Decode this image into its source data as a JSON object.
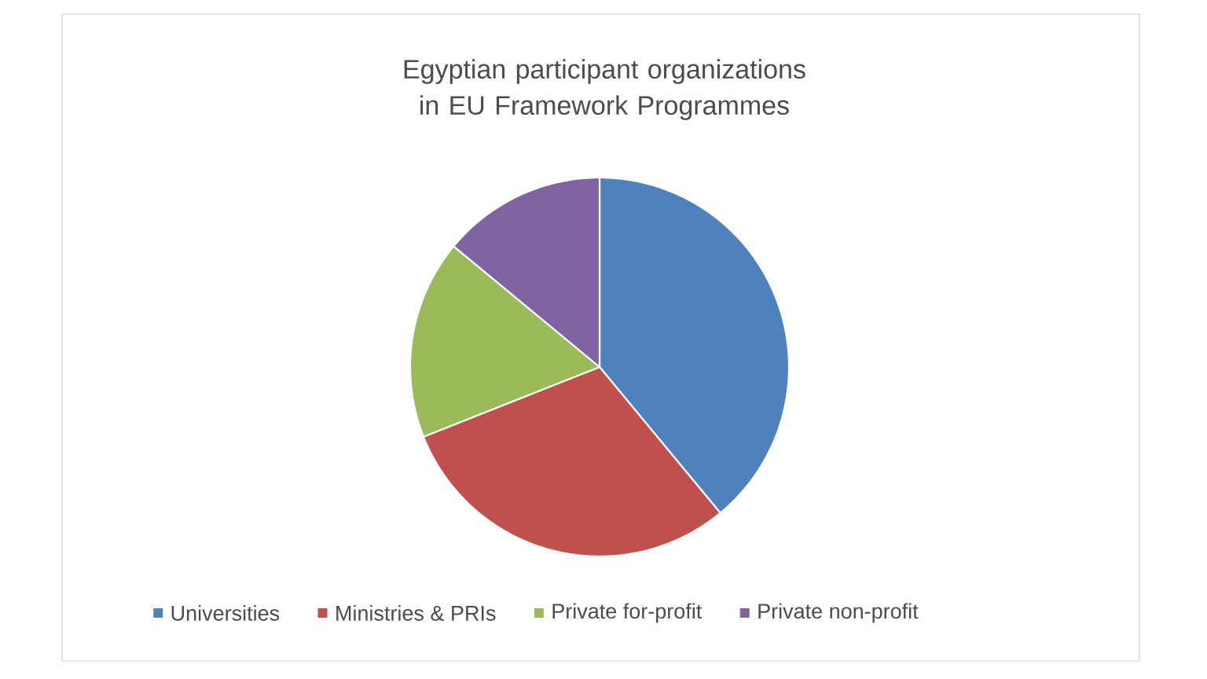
{
  "chart_data": {
    "type": "pie",
    "title": "Egyptian participant organizations in EU Framework Programmes",
    "categories": [
      "Universities",
      "Ministries & PRIs",
      "Private for-profit",
      "Private non-profit"
    ],
    "values": [
      39,
      30,
      17,
      14
    ],
    "colors": [
      "#4f81bd",
      "#c0504d",
      "#9bbb59",
      "#8064a2"
    ],
    "legend": "bottom"
  }
}
